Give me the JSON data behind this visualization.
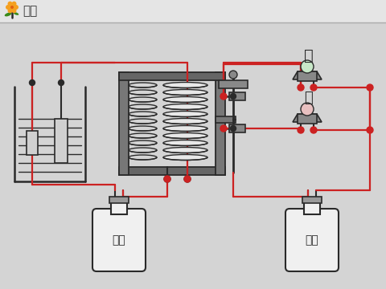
{
  "bg_color": "#d4d4d4",
  "red": "#cc2222",
  "dark": "#2a2a2a",
  "label_lv": "维",
  "label_hong": "红",
  "label_dianyuan": "电源",
  "label_huodong": "活动"
}
